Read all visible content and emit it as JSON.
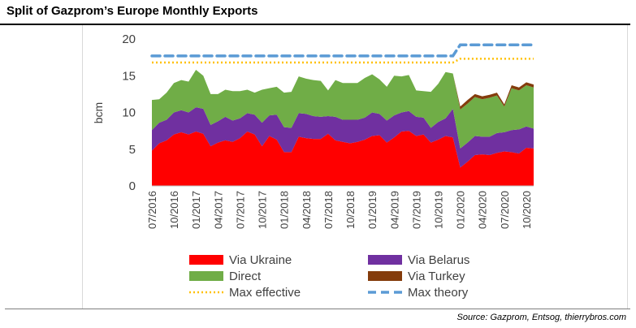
{
  "page": {
    "title": "Split of Gazprom’s Europe Monthly Exports",
    "source": "Source: Gazprom, Entsog, thierrybros.com"
  },
  "chart_data": {
    "type": "area",
    "title": "Split of Gazprom’s Europe Monthly Exports",
    "xlabel": "",
    "ylabel": "bcm",
    "ylim": [
      0,
      20
    ],
    "yticks": [
      0,
      5,
      10,
      15,
      20
    ],
    "grid": false,
    "legend_position": "bottom",
    "x": [
      "07/2016",
      "08/2016",
      "09/2016",
      "10/2016",
      "11/2016",
      "12/2016",
      "01/2017",
      "02/2017",
      "03/2017",
      "04/2017",
      "05/2017",
      "06/2017",
      "07/2017",
      "08/2017",
      "09/2017",
      "10/2017",
      "11/2017",
      "12/2017",
      "01/2018",
      "02/2018",
      "03/2018",
      "04/2018",
      "05/2018",
      "06/2018",
      "07/2018",
      "08/2018",
      "09/2018",
      "10/2018",
      "11/2018",
      "12/2018",
      "01/2019",
      "02/2019",
      "03/2019",
      "04/2019",
      "05/2019",
      "06/2019",
      "07/2019",
      "08/2019",
      "09/2019",
      "10/2019",
      "11/2019",
      "12/2019",
      "01/2020",
      "02/2020",
      "03/2020",
      "04/2020",
      "05/2020",
      "06/2020",
      "07/2020",
      "08/2020",
      "09/2020",
      "10/2020",
      "11/2020"
    ],
    "x_tick_labels": [
      "07/2016",
      "10/2016",
      "01/2017",
      "04/2017",
      "07/2017",
      "10/2017",
      "01/2018",
      "04/2018",
      "07/2018",
      "10/2018",
      "01/2019",
      "04/2019",
      "07/2019",
      "10/2019",
      "01/2020",
      "04/2020",
      "07/2020",
      "10/2020"
    ],
    "series": [
      {
        "name": "Via Ukraine",
        "kind": "area",
        "color": "#ff0000",
        "values": [
          4.8,
          5.8,
          6.2,
          7.0,
          7.3,
          7.0,
          7.4,
          7.1,
          5.4,
          5.9,
          6.2,
          6.0,
          6.5,
          7.4,
          7.0,
          5.4,
          6.8,
          6.3,
          4.6,
          4.6,
          6.7,
          6.5,
          6.4,
          6.4,
          7.1,
          6.2,
          6.0,
          5.8,
          6.0,
          6.3,
          6.8,
          6.9,
          5.9,
          6.6,
          7.4,
          7.5,
          6.8,
          7.0,
          5.9,
          6.3,
          6.8,
          6.6,
          2.5,
          3.3,
          4.2,
          4.3,
          4.2,
          4.5,
          4.7,
          4.6,
          4.4,
          5.2,
          5.1
        ]
      },
      {
        "name": "Via Belarus",
        "kind": "area",
        "color": "#7030a0",
        "values": [
          2.8,
          2.8,
          2.8,
          3.0,
          3.0,
          3.0,
          3.3,
          3.4,
          2.9,
          2.9,
          3.2,
          2.9,
          2.7,
          2.5,
          2.7,
          3.2,
          2.8,
          3.4,
          3.4,
          3.3,
          3.2,
          3.3,
          3.1,
          3.0,
          2.4,
          3.2,
          3.0,
          3.2,
          3.0,
          3.0,
          3.2,
          2.9,
          3.0,
          3.0,
          2.6,
          2.7,
          2.6,
          2.3,
          2.0,
          2.4,
          2.4,
          3.9,
          2.6,
          2.6,
          2.6,
          2.4,
          2.5,
          2.7,
          2.6,
          3.0,
          3.3,
          2.9,
          2.7
        ]
      },
      {
        "name": "Direct",
        "kind": "area",
        "color": "#70ad47",
        "values": [
          4.1,
          3.2,
          3.7,
          4.0,
          4.1,
          4.2,
          5.1,
          4.5,
          4.2,
          3.7,
          3.7,
          4.0,
          3.7,
          3.2,
          3.0,
          4.5,
          3.7,
          3.8,
          4.7,
          4.9,
          5.0,
          4.8,
          4.9,
          4.9,
          3.5,
          5.0,
          5.0,
          5.0,
          5.0,
          5.4,
          5.2,
          4.7,
          4.6,
          5.4,
          4.9,
          4.9,
          3.6,
          3.6,
          4.9,
          5.2,
          6.3,
          4.8,
          5.3,
          5.3,
          5.3,
          5.1,
          5.3,
          5.1,
          3.5,
          5.7,
          5.3,
          5.6,
          5.6
        ]
      },
      {
        "name": "Via Turkey",
        "kind": "area",
        "color": "#843c0c",
        "values": [
          0,
          0,
          0,
          0,
          0,
          0,
          0,
          0,
          0,
          0,
          0,
          0,
          0,
          0,
          0,
          0,
          0,
          0,
          0,
          0,
          0,
          0,
          0,
          0,
          0,
          0,
          0,
          0,
          0,
          0,
          0,
          0,
          0,
          0,
          0,
          0,
          0,
          0,
          0,
          0,
          0,
          0,
          0.4,
          0.5,
          0.4,
          0.4,
          0.4,
          0.4,
          0.3,
          0.4,
          0.4,
          0.4,
          0.4
        ]
      },
      {
        "name": "Max effective",
        "kind": "line",
        "color": "#ffc000",
        "dash": "dotted",
        "values": [
          16.8,
          16.8,
          16.8,
          16.8,
          16.8,
          16.8,
          16.8,
          16.8,
          16.8,
          16.8,
          16.8,
          16.8,
          16.8,
          16.8,
          16.8,
          16.8,
          16.8,
          16.8,
          16.8,
          16.8,
          16.8,
          16.8,
          16.8,
          16.8,
          16.8,
          16.8,
          16.8,
          16.8,
          16.8,
          16.8,
          16.8,
          16.8,
          16.8,
          16.8,
          16.8,
          16.8,
          16.8,
          16.8,
          16.8,
          16.8,
          16.8,
          16.8,
          17.3,
          17.3,
          17.3,
          17.3,
          17.3,
          17.3,
          17.3,
          17.3,
          17.3,
          17.3,
          17.3
        ]
      },
      {
        "name": "Max theory",
        "kind": "line",
        "color": "#5b9bd5",
        "dash": "dashed",
        "values": [
          17.7,
          17.7,
          17.7,
          17.7,
          17.7,
          17.7,
          17.7,
          17.7,
          17.7,
          17.7,
          17.7,
          17.7,
          17.7,
          17.7,
          17.7,
          17.7,
          17.7,
          17.7,
          17.7,
          17.7,
          17.7,
          17.7,
          17.7,
          17.7,
          17.7,
          17.7,
          17.7,
          17.7,
          17.7,
          17.7,
          17.7,
          17.7,
          17.7,
          17.7,
          17.7,
          17.7,
          17.7,
          17.7,
          17.7,
          17.7,
          17.7,
          17.7,
          19.2,
          19.2,
          19.2,
          19.2,
          19.2,
          19.2,
          19.2,
          19.2,
          19.2,
          19.2,
          19.2
        ]
      }
    ]
  }
}
